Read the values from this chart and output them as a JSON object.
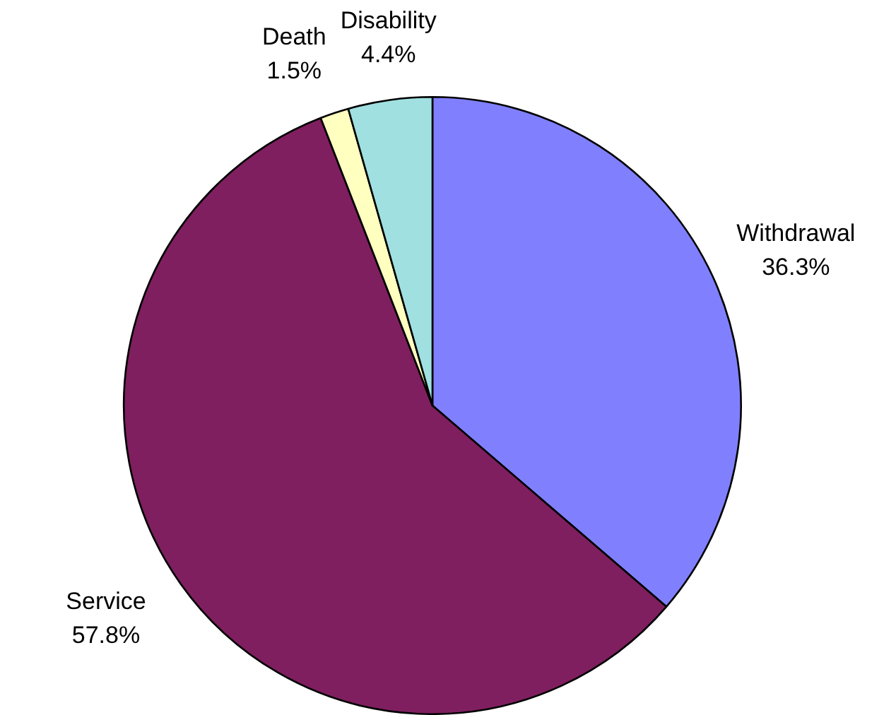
{
  "chart_data": {
    "type": "pie",
    "categories": [
      "Withdrawal",
      "Service",
      "Death",
      "Disability"
    ],
    "values": [
      36.3,
      57.8,
      1.5,
      4.4
    ],
    "value_labels": [
      "36.3%",
      "57.8%",
      "1.5%",
      "4.4%"
    ],
    "colors": [
      "#8080ff",
      "#7f1f5f",
      "#ffffc0",
      "#a0e0e0"
    ],
    "legend": false
  }
}
